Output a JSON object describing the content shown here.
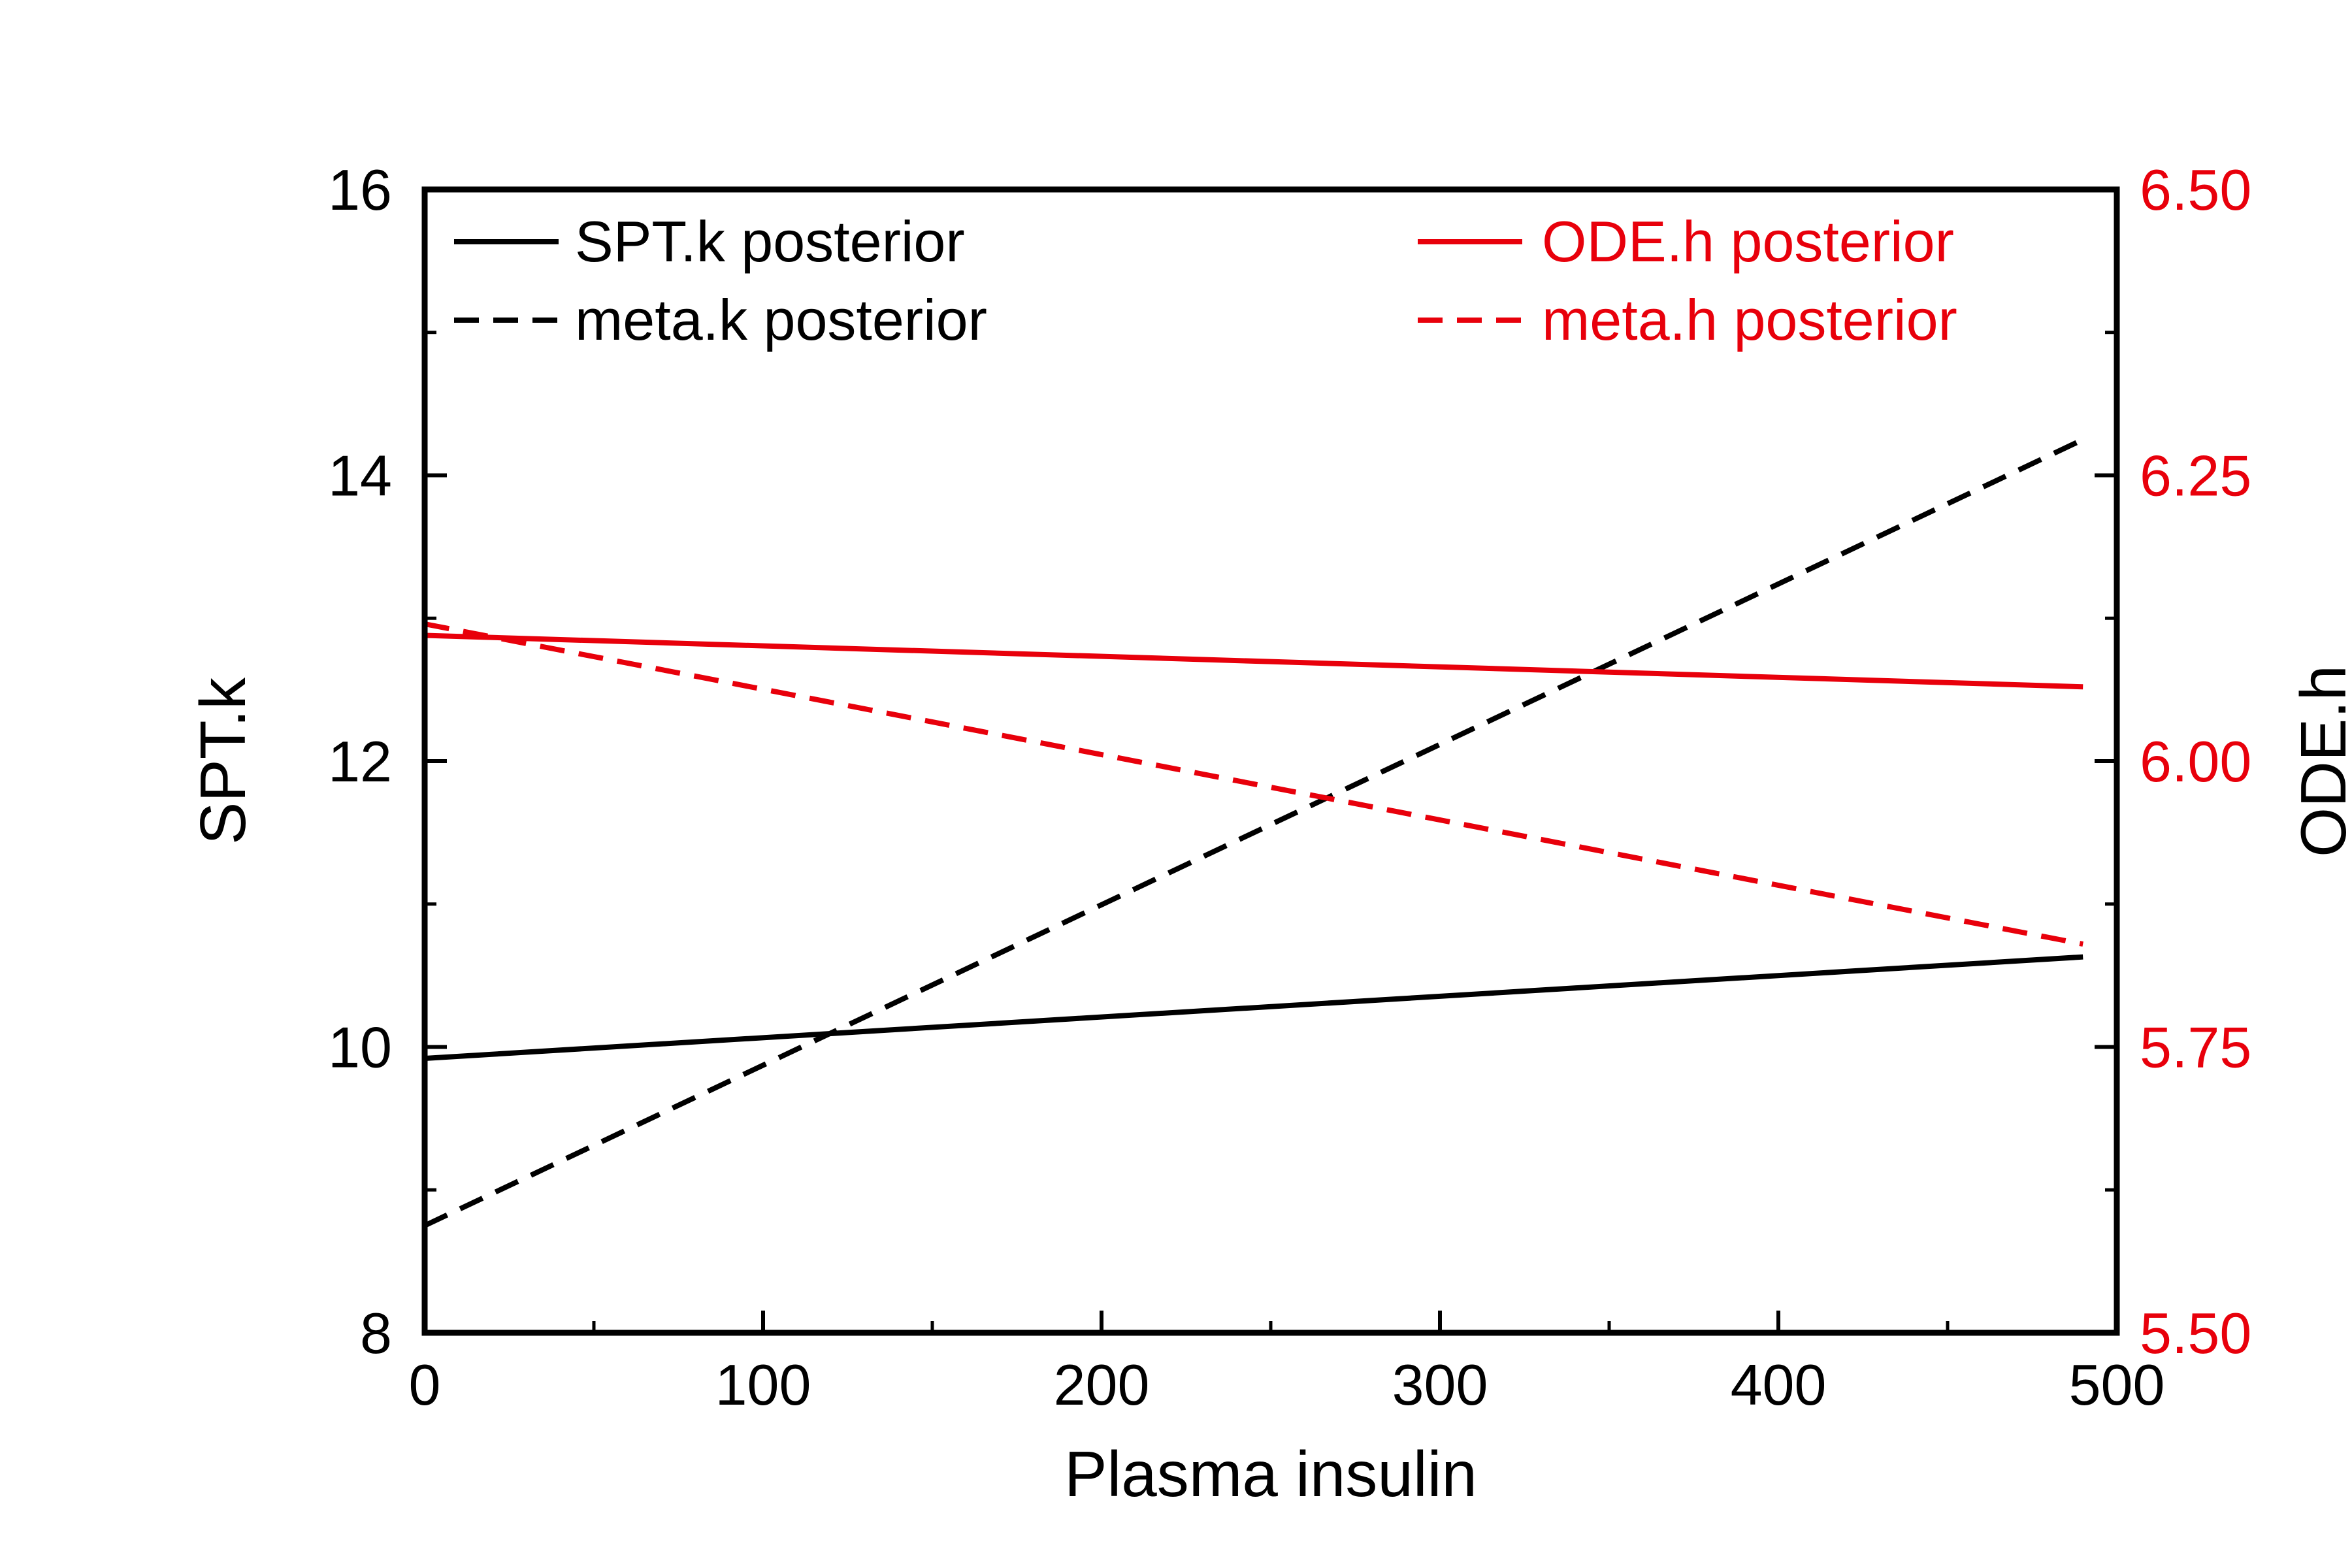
{
  "chart_data": {
    "type": "line",
    "title": "",
    "xlabel": "Plasma insulin",
    "ylabel": "SPT.k",
    "y2label": "ODE.h",
    "xlim": [
      0,
      500
    ],
    "ylim": [
      8,
      16
    ],
    "y2lim": [
      5.5,
      6.5
    ],
    "x_ticks": [
      0,
      100,
      200,
      300,
      400,
      500
    ],
    "x_tick_labels": [
      "0",
      "100",
      "200",
      "300",
      "400",
      "500"
    ],
    "y_ticks": [
      8,
      10,
      12,
      14,
      16
    ],
    "y_tick_labels": [
      "8",
      "10",
      "12",
      "14",
      "16"
    ],
    "y2_ticks": [
      5.5,
      5.75,
      6.0,
      6.25,
      6.5
    ],
    "y2_tick_labels": [
      "5.50",
      "5.75",
      "6.00",
      "6.25",
      "6.50"
    ],
    "grid": false,
    "legend_placement": "top",
    "colors": {
      "black": "#000000",
      "red": "#e8000b"
    },
    "series": [
      {
        "name": "SPT.k posterior",
        "axis": "left",
        "style": "solid",
        "color": "#000000",
        "x": [
          0,
          490
        ],
        "y": [
          9.92,
          10.63
        ]
      },
      {
        "name": "meta.k posterior",
        "axis": "left",
        "style": "dashed",
        "color": "#000000",
        "x": [
          0,
          490
        ],
        "y": [
          8.75,
          14.25
        ]
      },
      {
        "name": "ODE.h posterior",
        "axis": "right",
        "style": "solid",
        "color": "#e8000b",
        "x": [
          0,
          490
        ],
        "y": [
          6.11,
          6.065
        ]
      },
      {
        "name": "meta.h posterior",
        "axis": "right",
        "style": "dashed",
        "color": "#e8000b",
        "x": [
          0,
          490
        ],
        "y": [
          6.12,
          5.84
        ]
      }
    ]
  }
}
